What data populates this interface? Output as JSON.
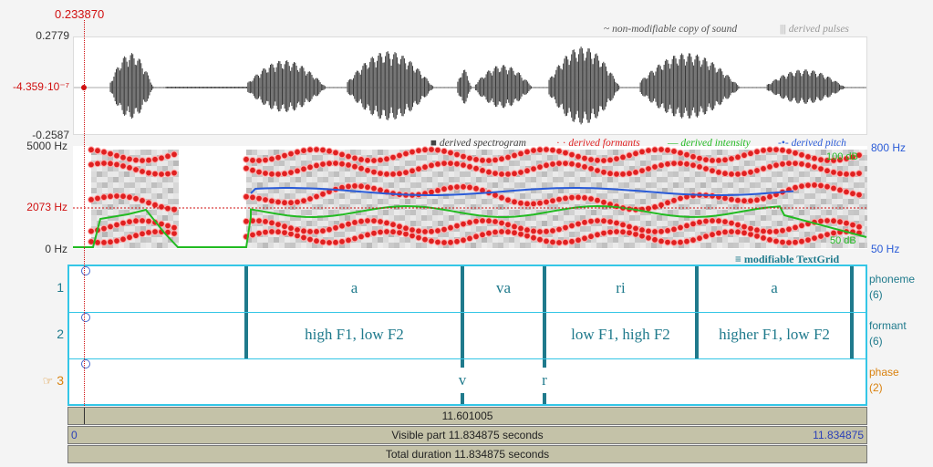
{
  "cursor": {
    "time_label": "0.233870",
    "amplitude_label": "-4.359·10⁻⁷",
    "frequency_label": "2073 Hz"
  },
  "waveform": {
    "ymax_label": "0.2779",
    "ymin_label": "-0.2587",
    "legend": {
      "copy": "non-modifiable copy of sound",
      "pulses": "derived pulses"
    }
  },
  "spectrogram": {
    "fmax_label": "5000 Hz",
    "fmin_label": "0 Hz",
    "pitch_max_label": "800 Hz",
    "pitch_min_label": "50 Hz",
    "intensity_max_label": "100 dB",
    "intensity_min_label": "50 dB",
    "legend": {
      "spectrogram": "derived spectrogram",
      "formants": "derived formants",
      "intensity": "derived intensity",
      "pitch": "derived pitch"
    }
  },
  "textgrid": {
    "label": "modifiable TextGrid",
    "tiers": [
      {
        "number": "1",
        "name": "phoneme",
        "count": "(6)",
        "intervals": [
          "a",
          "va",
          "ri",
          "a"
        ]
      },
      {
        "number": "2",
        "name": "formant",
        "count": "(6)",
        "intervals": [
          "high F1, low F2",
          "low F1, high F2",
          "higher F1, low F2"
        ]
      },
      {
        "number": "3",
        "name": "phase",
        "count": "(2)",
        "marker": "☞",
        "points": [
          "v",
          "r"
        ]
      }
    ]
  },
  "time_bars": {
    "selection_label": "11.601005",
    "start_label": "0",
    "end_label": "11.834875",
    "visible_label": "Visible part 11.834875 seconds",
    "total_label": "Total duration 11.834875 seconds"
  },
  "colors": {
    "accent_cyan": "#34c6e6",
    "tier_text": "#1f7a8c",
    "cursor_red": "#d01010",
    "pitch_blue": "#2a5bd7",
    "intensity_green": "#22bb22",
    "formant_red": "#e02020"
  }
}
